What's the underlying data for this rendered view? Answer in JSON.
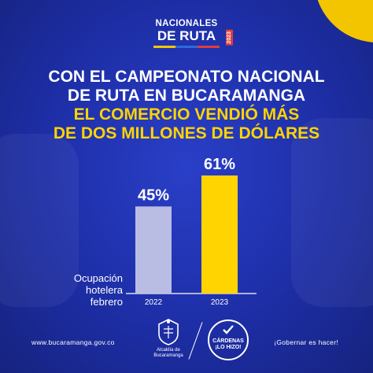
{
  "logo": {
    "line1": "NACIONALES",
    "line2": "DE RUTA",
    "year": "2023",
    "stripe_colors": [
      "#f3c500",
      "#2f6ad9",
      "#e23c3c"
    ]
  },
  "headline": {
    "line1": "CON EL CAMPEONATO NACIONAL",
    "line2": "DE RUTA EN BUCARAMANGA",
    "line3": "EL COMERCIO VENDIÓ MÁS",
    "line4": "DE DOS MILLONES DE DÓLARES"
  },
  "colors": {
    "background": "#1d2ea6",
    "accent": "#ffd400",
    "bar_2022": "#b9bde4",
    "bar_2023": "#ffd400"
  },
  "chart_data": {
    "type": "bar",
    "categories": [
      "2022",
      "2023"
    ],
    "values": [
      45,
      61
    ],
    "value_labels": [
      "45%",
      "61%"
    ],
    "ylabel": "Ocupación hotelera febrero",
    "ylabel_lines": [
      "Ocupación",
      "hotelera",
      "febrero"
    ],
    "ylim": [
      0,
      61
    ],
    "grid": false,
    "legend": "none"
  },
  "footer": {
    "url": "www.bucaramanga.gov.co",
    "slogan": "¡Gobernar es hacer!",
    "crest_label_line1": "Alcaldía de",
    "crest_label_line2": "Bucaramanga",
    "stamp_line1": "CÁRDENAS",
    "stamp_line2": "¡LO HIZO!"
  }
}
